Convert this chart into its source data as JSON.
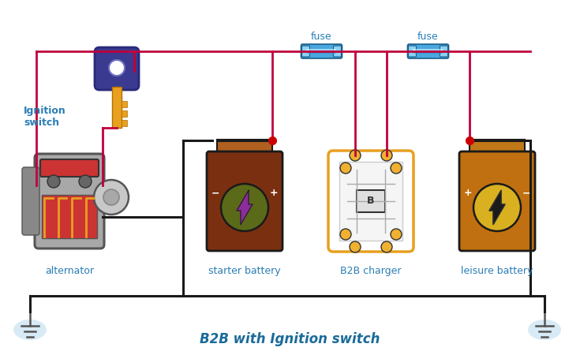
{
  "bg_color": "#ffffff",
  "title": "B2B with Ignition switch",
  "title_color": "#1a6b9a",
  "title_fontsize": 12,
  "wire_color_red": "#c0003c",
  "wire_color_black": "#1a1a1a",
  "fuse_label_color": "#2a7db5",
  "label_color": "#2a7db5",
  "label_fontsize": 9,
  "ignition_label": "Ignition\nswitch",
  "alternator_label": "alternator",
  "starter_label": "starter battery",
  "b2b_label": "B2B charger",
  "leisure_label": "leisure battery",
  "figw": 7.35,
  "figh": 4.5,
  "dpi": 100
}
